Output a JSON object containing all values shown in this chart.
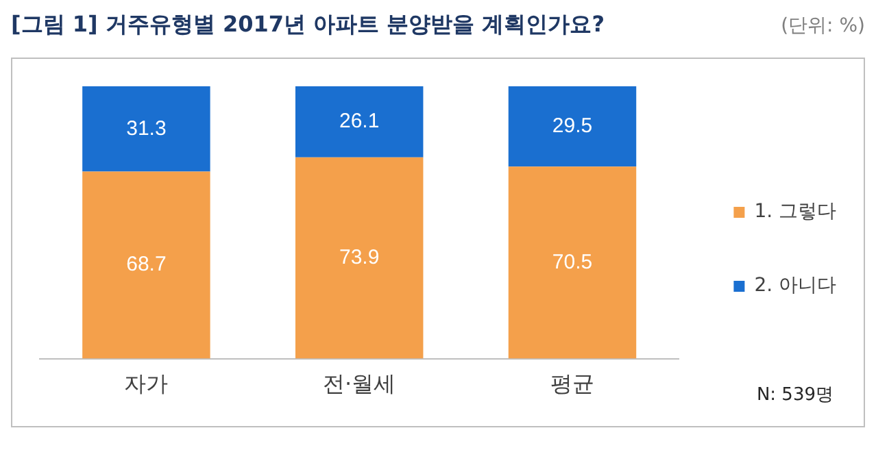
{
  "chart_data": {
    "type": "bar",
    "title": "[그림 1] 거주유형별 2017년 아파트 분양받을 계획인가요?",
    "categories": [
      "자가",
      "전·월세",
      "평균"
    ],
    "series": [
      {
        "name": "1. 그렇다",
        "color": "#f4a04b",
        "values": [
          68.7,
          73.9,
          70.5
        ]
      },
      {
        "name": "2. 아니다",
        "color": "#1a6fd0",
        "values": [
          31.3,
          26.1,
          29.5
        ]
      }
    ],
    "stacked": true,
    "ylim": [
      0,
      100
    ],
    "tick_labels": "x",
    "data_labels": true,
    "legend": "right",
    "grid": false,
    "annotations": [
      "(단위: %)",
      "N: 539명"
    ]
  }
}
